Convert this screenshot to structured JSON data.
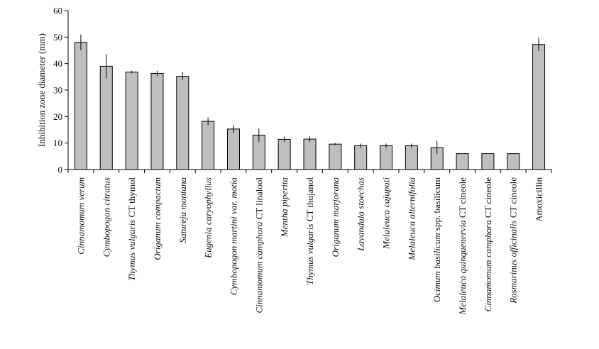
{
  "chart_data": {
    "type": "bar",
    "ylabel": "Inhibition zone diameter (mm)",
    "xlabel": "",
    "ylim": [
      0,
      60
    ],
    "yticks": [
      0,
      10,
      20,
      30,
      40,
      50,
      60
    ],
    "grid": false,
    "bar_color": "#bfbfbf",
    "categories": [
      [
        {
          "t": "Cinnamomum verum",
          "i": true
        }
      ],
      [
        {
          "t": "Cymbopogon citratus",
          "i": true
        }
      ],
      [
        {
          "t": "Thymus vulgaris",
          "i": true
        },
        {
          "t": " CT thymol",
          "i": false
        }
      ],
      [
        {
          "t": "Origanum compactum",
          "i": true
        }
      ],
      [
        {
          "t": "Satureja montana",
          "i": true
        }
      ],
      [
        {
          "t": "Eugenia caryophyllus",
          "i": true
        }
      ],
      [
        {
          "t": "Cymbopogon martini var. motia",
          "i": true
        }
      ],
      [
        {
          "t": "Cinnamomum camphora",
          "i": true
        },
        {
          "t": " CT linalool",
          "i": false
        }
      ],
      [
        {
          "t": "Mentha piperita",
          "i": true
        }
      ],
      [
        {
          "t": "Thymus vulgaris",
          "i": true
        },
        {
          "t": " CT thujanol",
          "i": false
        }
      ],
      [
        {
          "t": "Origanum marjorana",
          "i": true
        }
      ],
      [
        {
          "t": "Lavandula stoechas",
          "i": true
        }
      ],
      [
        {
          "t": "Melaleuca cajuputi",
          "i": true
        }
      ],
      [
        {
          "t": "Melaleuca alternifolia",
          "i": true
        }
      ],
      [
        {
          "t": "Ocimum basilicum",
          "i": true
        },
        {
          "t": " spp. basilicum",
          "i": false
        }
      ],
      [
        {
          "t": "Melaleuca quinquenervia",
          "i": true
        },
        {
          "t": " CT cineole",
          "i": false
        }
      ],
      [
        {
          "t": "Cinnamomum camphora",
          "i": true
        },
        {
          "t": " CT cineole",
          "i": false
        }
      ],
      [
        {
          "t": "Rosmarinus officinalis",
          "i": true
        },
        {
          "t": " CT cineole",
          "i": false
        }
      ],
      [
        {
          "t": "Amoxicillin",
          "i": false
        }
      ]
    ],
    "values": [
      48,
      39,
      36.8,
      36.3,
      35.2,
      18.2,
      15.3,
      13,
      11.4,
      11.5,
      9.6,
      9,
      9,
      9,
      8.3,
      6,
      6,
      6,
      47.2
    ],
    "errors": [
      3,
      4.5,
      0.5,
      1,
      1.5,
      1.5,
      1.5,
      2.5,
      1,
      1,
      0.4,
      0.8,
      0.8,
      0.8,
      2.5,
      0,
      0,
      0,
      2.5
    ]
  }
}
